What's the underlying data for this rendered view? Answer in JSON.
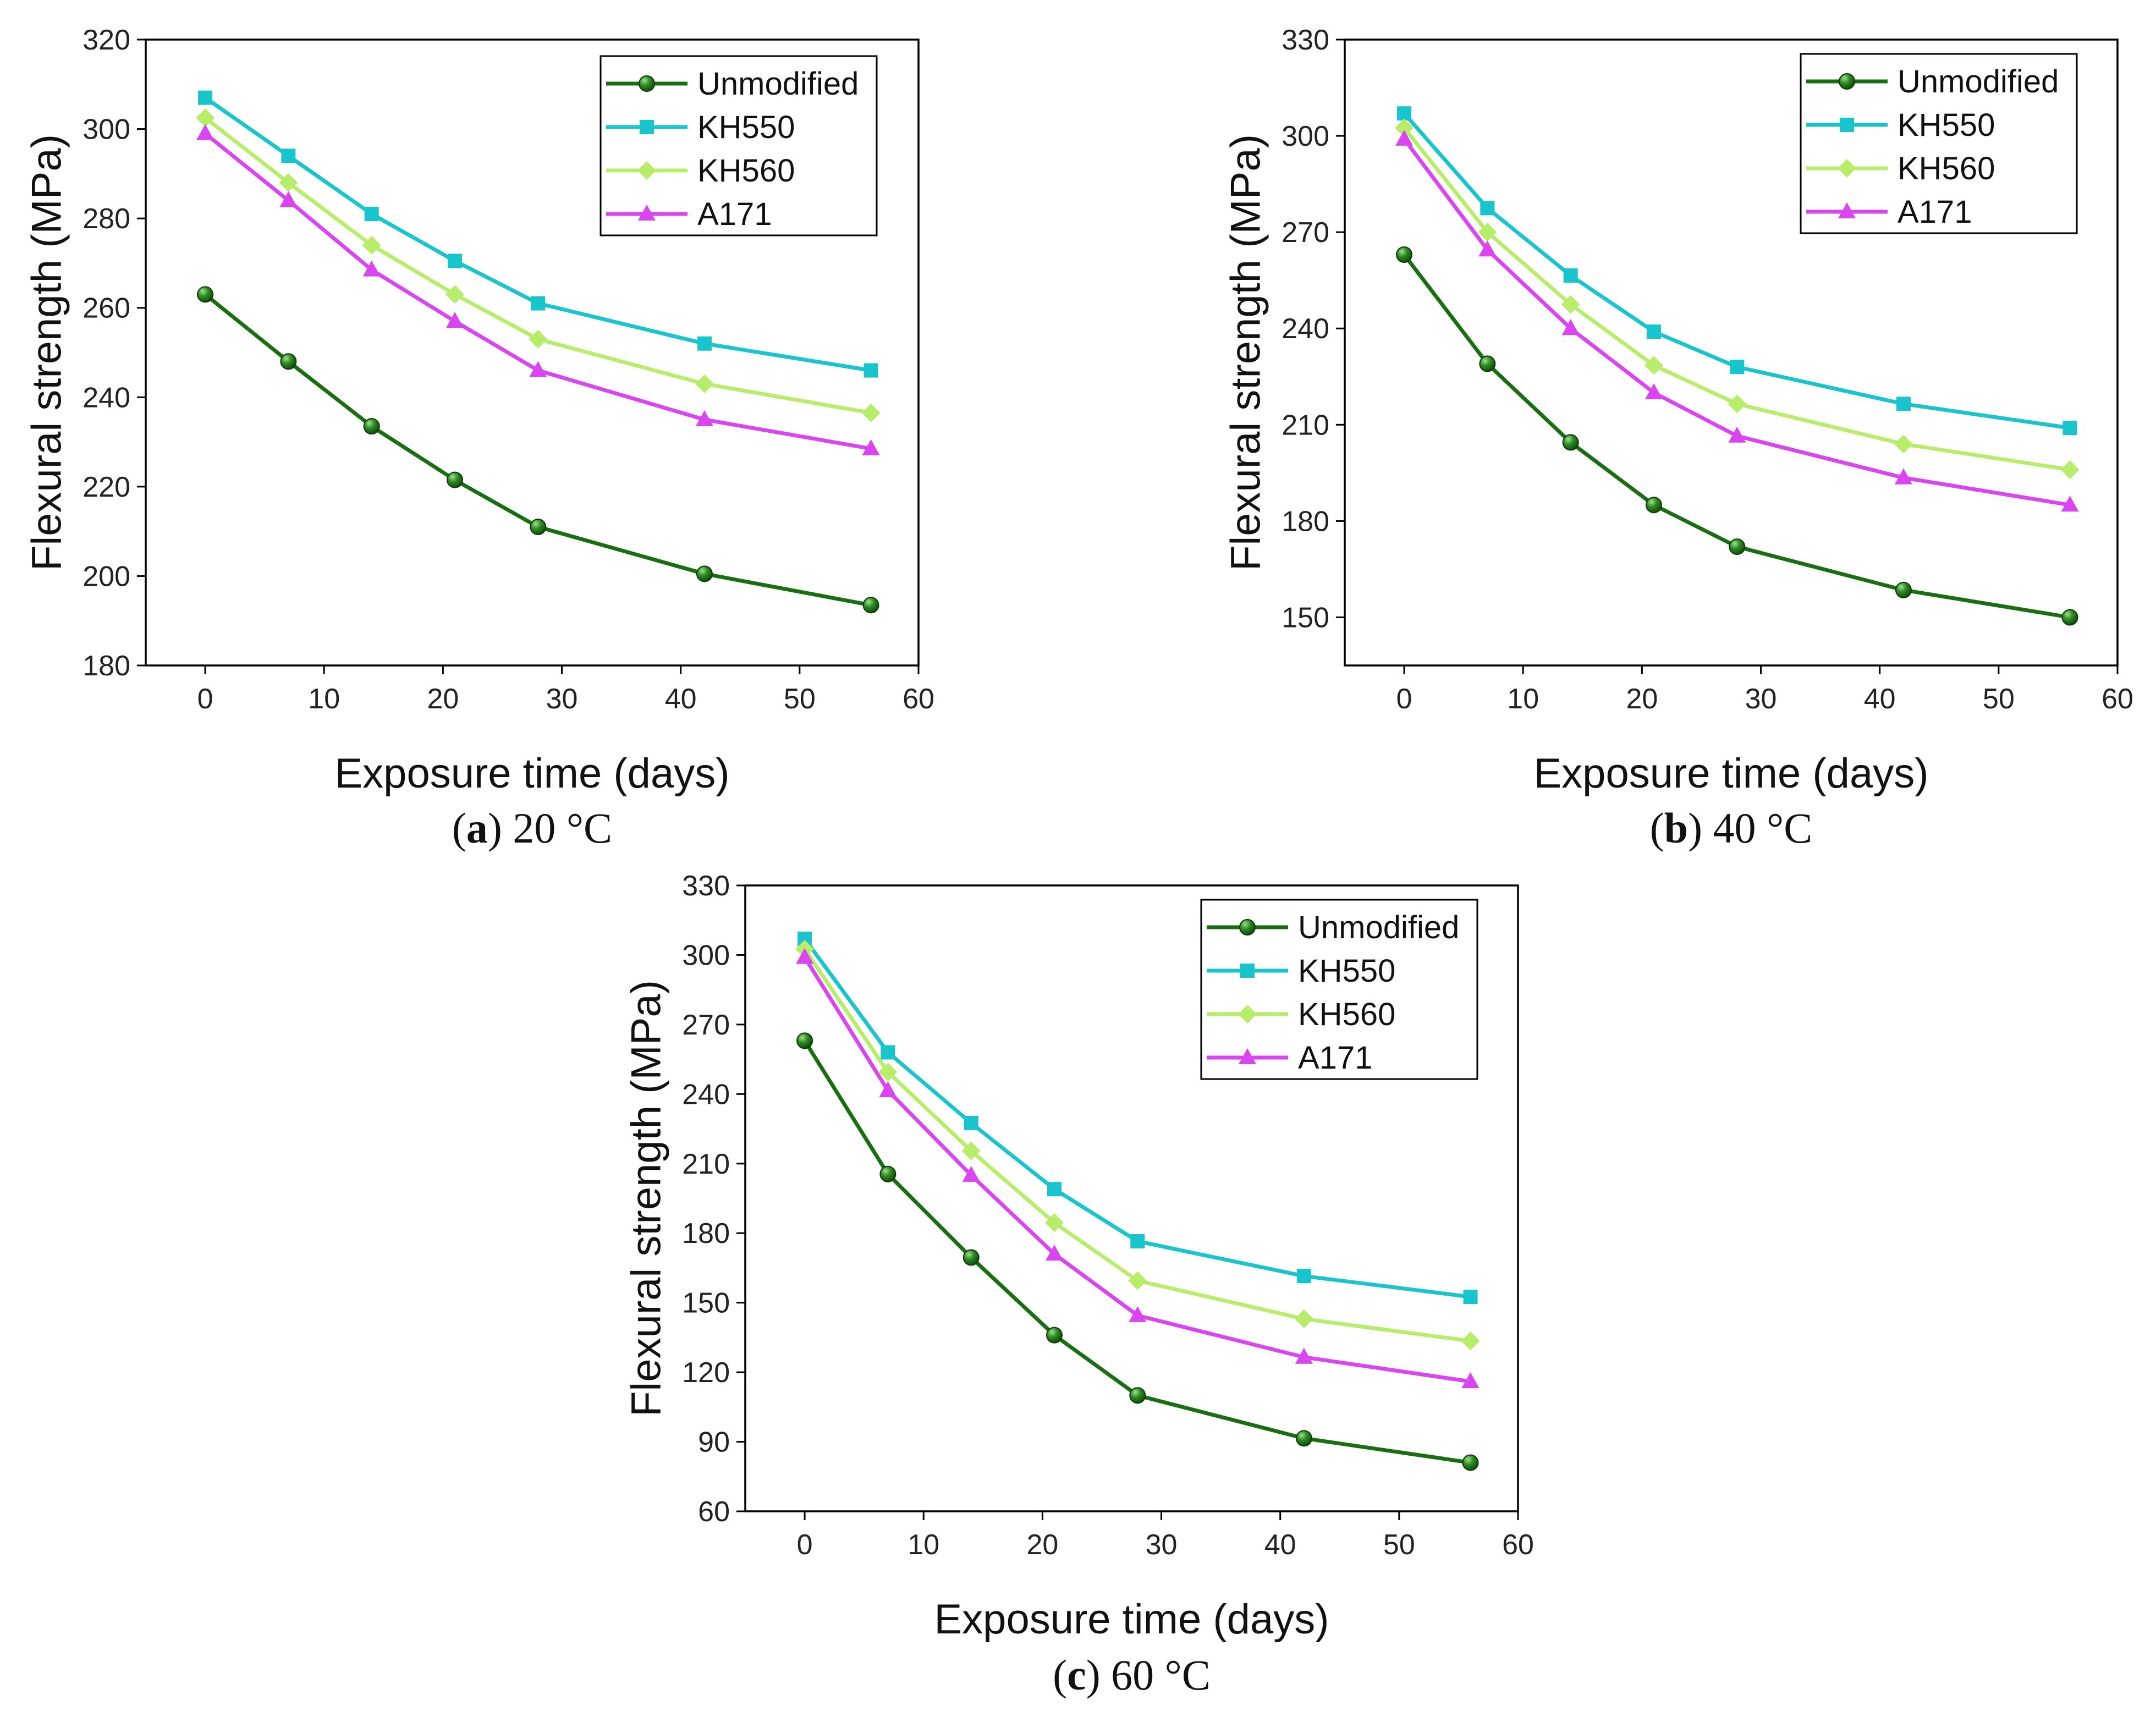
{
  "chart_data": [
    {
      "type": "line",
      "caption": {
        "letter": "a",
        "text": "20 °C"
      },
      "xlabel": "Exposure time (days)",
      "ylabel": "Flexural strength (MPa)",
      "xlim": [
        -5,
        60
      ],
      "ylim": [
        180,
        320
      ],
      "xticks": [
        0,
        10,
        20,
        30,
        40,
        50,
        60
      ],
      "yticks": [
        180,
        200,
        220,
        240,
        260,
        280,
        300,
        320
      ],
      "legend_position": "top-right",
      "x": [
        0,
        7,
        14,
        21,
        28,
        42,
        56
      ],
      "series": [
        {
          "name": "Unmodified",
          "marker": "circle",
          "color": "#1a6e12",
          "values": [
            263,
            248,
            233.5,
            221.5,
            211,
            200.5,
            193.5
          ]
        },
        {
          "name": "KH550",
          "marker": "square",
          "color": "#19c4cc",
          "values": [
            307,
            294,
            281,
            270.5,
            261,
            252,
            246
          ]
        },
        {
          "name": "KH560",
          "marker": "diamond",
          "color": "#b8ed6c",
          "values": [
            302.5,
            288,
            274,
            263,
            253,
            243,
            236.5
          ]
        },
        {
          "name": "A171",
          "marker": "triangle",
          "color": "#d946ef",
          "values": [
            299,
            284,
            268.5,
            257,
            246,
            235,
            228.5
          ]
        }
      ]
    },
    {
      "type": "line",
      "caption": {
        "letter": "b",
        "text": "40 °C"
      },
      "xlabel": "Exposure time (days)",
      "ylabel": "Flexural strength (MPa)",
      "xlim": [
        -5,
        60
      ],
      "ylim": [
        135,
        330
      ],
      "xticks": [
        0,
        10,
        20,
        30,
        40,
        50,
        60
      ],
      "yticks": [
        150,
        180,
        210,
        240,
        270,
        300,
        330
      ],
      "legend_position": "top-right",
      "x": [
        0,
        7,
        14,
        21,
        28,
        42,
        56
      ],
      "series": [
        {
          "name": "Unmodified",
          "marker": "circle",
          "color": "#1a6e12",
          "values": [
            263,
            229,
            204.5,
            185,
            172,
            158.5,
            150
          ]
        },
        {
          "name": "KH550",
          "marker": "square",
          "color": "#19c4cc",
          "values": [
            307,
            277.5,
            256.5,
            239,
            228,
            216.5,
            209
          ]
        },
        {
          "name": "KH560",
          "marker": "diamond",
          "color": "#b8ed6c",
          "values": [
            302.5,
            270,
            247.5,
            228.5,
            216.5,
            204,
            196
          ]
        },
        {
          "name": "A171",
          "marker": "triangle",
          "color": "#d946ef",
          "values": [
            299,
            264.5,
            240,
            220,
            206.5,
            193.5,
            185
          ]
        }
      ]
    },
    {
      "type": "line",
      "caption": {
        "letter": "c",
        "text": "60 °C"
      },
      "xlabel": "Exposure time (days)",
      "ylabel": "Flexural strength (MPa)",
      "xlim": [
        -5,
        60
      ],
      "ylim": [
        60,
        330
      ],
      "xticks": [
        0,
        10,
        20,
        30,
        40,
        50,
        60
      ],
      "yticks": [
        60,
        90,
        120,
        150,
        180,
        210,
        240,
        270,
        300,
        330
      ],
      "legend_position": "top-right",
      "x": [
        0,
        7,
        14,
        21,
        28,
        42,
        56
      ],
      "series": [
        {
          "name": "Unmodified",
          "marker": "circle",
          "color": "#1a6e12",
          "values": [
            263,
            205.5,
            169.5,
            136,
            110,
            91.5,
            81
          ]
        },
        {
          "name": "KH550",
          "marker": "square",
          "color": "#19c4cc",
          "values": [
            307,
            258,
            227.5,
            199,
            176.5,
            161.5,
            152.5
          ]
        },
        {
          "name": "KH560",
          "marker": "diamond",
          "color": "#b8ed6c",
          "values": [
            302.5,
            249.5,
            215.5,
            184.5,
            159.5,
            143,
            133.5
          ]
        },
        {
          "name": "A171",
          "marker": "triangle",
          "color": "#d946ef",
          "values": [
            299,
            241.5,
            205,
            171,
            144.5,
            126.5,
            116
          ]
        }
      ]
    }
  ]
}
